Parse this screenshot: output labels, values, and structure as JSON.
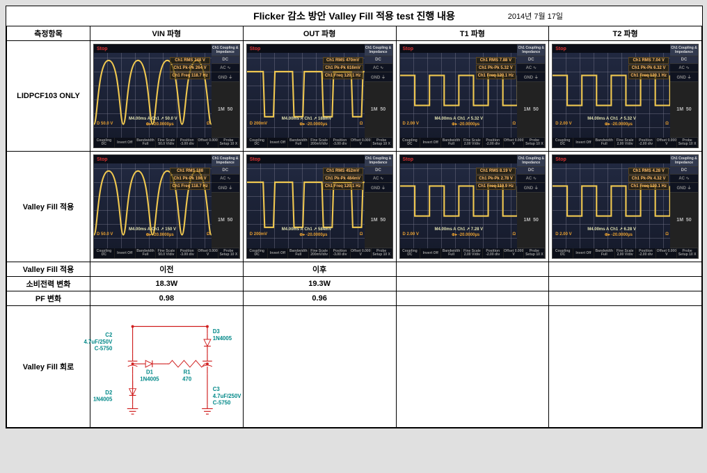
{
  "title": "Flicker 감소 방안 Valley Fill 적용 test 진행 내용",
  "date": "2014년 7월 17일",
  "headers": {
    "col0": "측정항목",
    "col1": "VIN 파형",
    "col2": "OUT 파형",
    "col3": "T1 파형",
    "col4": "T2 파형"
  },
  "row_labels": {
    "r1": "LIDPCF103 ONLY",
    "r2": "Valley Fill 적용",
    "r3": "Valley Fill 적용",
    "r4": "소비전력 변화",
    "r5": "PF 변화",
    "r6": "Valley Fill 회로"
  },
  "data_rows": {
    "r3": {
      "c1": "이전",
      "c2": "이후",
      "c3": "",
      "c4": ""
    },
    "r4": {
      "c1": "18.3W",
      "c2": "19.3W",
      "c3": "",
      "c4": ""
    },
    "r5": {
      "c1": "0.98",
      "c2": "0.96",
      "c3": "",
      "c4": ""
    }
  },
  "scope_common": {
    "stop_label": "Stop",
    "side_top": "Ch1 Coupling & Impedance",
    "side_dc": "DC",
    "side_ac": "AC ∿",
    "side_gnd": "GND ⏚",
    "side_ohm_1m": "1M",
    "side_ohm_50": "50",
    "bottom": {
      "b1": "Coupling DC",
      "b2": "Invert Off",
      "b3": "Bandwidth Full",
      "b4": "Fine Scale",
      "b5": "Position",
      "b6": "Offset 0.000 V",
      "b7": "Probe Setup 10 X"
    }
  },
  "scopes": {
    "r1c1": {
      "type": "sine_rect",
      "wave_color": "#f0c850",
      "meas": [
        "Ch1 RMS 248 V",
        "Ch1 Pk-Pk 264 V",
        "Ch1 Freq 118.7 Hz"
      ],
      "left_v": "D 50.0 V",
      "timebase": "M4.00ms A Ch1 ↗ 50.0 V",
      "cursor": "⊕▸ -20.0000µs",
      "fine_scale": "50.0 V/div",
      "position": "-3.00 div"
    },
    "r1c2": {
      "type": "flat_dip",
      "wave_color": "#f0c850",
      "meas": [
        "Ch1 RMS 470mV",
        "Ch1 Pk-Pk 616mV",
        "Ch1 Freq 120.1 Hz"
      ],
      "left_v": "D 200mV",
      "timebase": "M4.00ms A Ch1 ↗ 188mV",
      "cursor": "⊕▸ -20.0000µs",
      "fine_scale": "200mV/div",
      "position": "-3.00 div"
    },
    "r1c3": {
      "type": "square",
      "wave_color": "#f0c850",
      "meas": [
        "Ch1 RMS 7.88 V",
        "Ch1 Pk-Pk 5.32 V",
        "Ch1 Freq 120.1 Hz"
      ],
      "left_v": "D 2.00 V",
      "timebase": "M4.00ms A Ch1 ↗ 5.32 V",
      "cursor": "⊕▸ -20.0000µs",
      "fine_scale": "2.00 V/div",
      "position": "-2.00 div"
    },
    "r1c4": {
      "type": "square",
      "wave_color": "#f0c850",
      "meas": [
        "Ch1 RMS 7.04 V",
        "Ch1 Pk-Pk 6.32 V",
        "Ch1 Freq 120.1 Hz"
      ],
      "left_v": "D 2.00 V",
      "timebase": "M4.00ms A Ch1 ↗ 5.32 V",
      "cursor": "⊕▸ -20.0000µs",
      "fine_scale": "2.00 V/div",
      "position": "-2.00 div"
    },
    "r2c1": {
      "type": "sine_rect",
      "wave_color": "#f0c850",
      "meas": [
        "Ch1 RMS 188",
        "Ch1 Pk-Pk 198 V",
        "Ch1 Freq 118.7 Hz"
      ],
      "left_v": "D 50.0 V",
      "timebase": "M4.00ms A Ch1 ↗ 150 V",
      "cursor": "⊕▸ -20.0000µs",
      "fine_scale": "50.0 V/div",
      "position": "-3.00 div"
    },
    "r2c2": {
      "type": "flat_dip",
      "wave_color": "#f0c850",
      "meas": [
        "Ch1 RMS 452mV",
        "Ch1 Pk-Pk 484mV",
        "Ch1 Freq 120.1 Hz"
      ],
      "left_v": "D 200mV",
      "timebase": "M4.00ms A Ch1 ↗ 584mV",
      "cursor": "⊕▸ -20.0000µs",
      "fine_scale": "200mV/div",
      "position": "-3.00 div"
    },
    "r2c3": {
      "type": "square",
      "wave_color": "#f0c850",
      "meas": [
        "Ch1 RMS 8.19 V",
        "Ch1 Pk-Pk 2.78 V",
        "Ch1 Freq 119.9 Hz"
      ],
      "left_v": "D 2.00 V",
      "timebase": "M4.00ms A Ch1 ↗ 7.28 V",
      "cursor": "⊕▸ -20.0000µs",
      "fine_scale": "2.00 V/div",
      "position": "-2.00 div"
    },
    "r2c4": {
      "type": "square",
      "wave_color": "#f0c850",
      "meas": [
        "Ch1 RMS 4.28 V",
        "Ch1 Pk-Pk 4.32 V",
        "Ch1 Freq 120.1 Hz"
      ],
      "left_v": "D 2.00 V",
      "timebase": "M4.00ms A Ch1 ↗ 6.28 V",
      "cursor": "⊕▸ -20.0000µs",
      "fine_scale": "2.00 V/div",
      "position": "-2.00 div"
    }
  },
  "circuit": {
    "color_wire": "#d02020",
    "color_text": "#008888",
    "components": {
      "c2": {
        "label": "C2",
        "spec1": "4.7uF/250V",
        "spec2": "C-5750"
      },
      "c3": {
        "label": "C3",
        "spec1": "4.7uF/250V",
        "spec2": "C-5750"
      },
      "d1": {
        "label": "D1",
        "spec": "1N4005"
      },
      "d2": {
        "label": "D2",
        "spec": "1N4005"
      },
      "d3": {
        "label": "D3",
        "spec": "1N4005"
      },
      "r1": {
        "label": "R1",
        "spec": "470"
      }
    }
  }
}
